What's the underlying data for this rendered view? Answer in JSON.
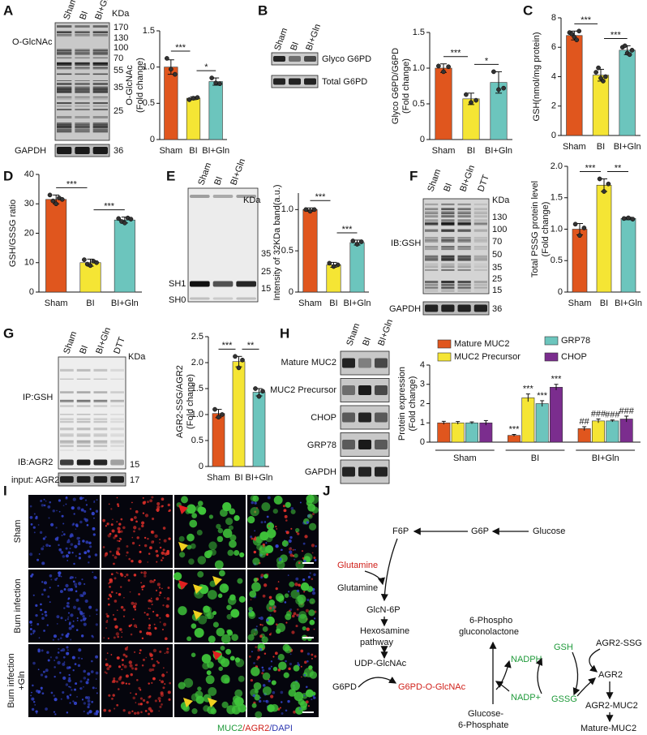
{
  "panels": [
    "A",
    "B",
    "C",
    "D",
    "E",
    "F",
    "G",
    "H",
    "I",
    "J"
  ],
  "blots": {
    "A": {
      "lanes": [
        "Sham",
        "BI",
        "BI+Gln"
      ],
      "unit": "KDa",
      "markers": [
        170,
        130,
        100,
        70,
        55,
        35,
        25
      ],
      "rows": [
        "O-GlcNAc",
        "GAPDH"
      ],
      "loading_marker": 36
    },
    "B": {
      "lanes": [
        "Sham",
        "BI",
        "BI+Gln"
      ],
      "rows": [
        "Glyco G6PD",
        "Total G6PD"
      ]
    },
    "E": {
      "lanes": [
        "Sham",
        "BI",
        "BI+Gln"
      ],
      "unit": "KDa",
      "markers": [
        35,
        25,
        15
      ],
      "rows": [
        "SH1",
        "SH0"
      ]
    },
    "F": {
      "lanes": [
        "Sham",
        "BI",
        "BI+Gln",
        "DTT"
      ],
      "unit": "KDa",
      "markers": [
        130,
        100,
        70,
        50,
        35,
        25,
        15
      ],
      "rows": [
        "IB:GSH",
        "GAPDH"
      ],
      "loading_marker": 36
    },
    "G": {
      "lanes": [
        "Sham",
        "BI",
        "BI+Gln",
        "DTT"
      ],
      "unit": "KDa",
      "rows": [
        "IP:GSH",
        "IB:AGR2",
        "input: AGR2"
      ],
      "markers": [
        15,
        17
      ]
    },
    "H": {
      "lanes": [
        "Sham",
        "BI",
        "BI+Gln"
      ],
      "rows": [
        "Mature MUC2",
        "MUC2 Precursor",
        "CHOP",
        "GRP78",
        "GAPDH"
      ]
    }
  },
  "chart_data": [
    {
      "type": "bar",
      "ylabel": [
        "O-GlcNAc",
        "(Fold change)"
      ],
      "categories": [
        "Sham",
        "BI",
        "BI+Gln"
      ],
      "values": [
        1.0,
        0.57,
        0.8
      ],
      "errors": [
        0.1,
        0.02,
        0.05
      ],
      "points": [
        [
          1.12,
          0.97,
          0.9
        ],
        [
          0.55,
          0.57,
          0.58
        ],
        [
          0.85,
          0.78,
          0.77
        ]
      ],
      "colors": [
        "#e0561e",
        "#f5e534",
        "#6cc5bd"
      ],
      "ylim": [
        0,
        1.5
      ],
      "yticks": [
        0,
        0.5,
        {
          "value": 1,
          "label": "1.0"
        },
        1.5
      ],
      "significance": [
        "***",
        "*"
      ]
    },
    {
      "type": "bar",
      "ylabel": [
        "Glyco G6PD/G6PD",
        "(Fold change)"
      ],
      "categories": [
        "Sham",
        "BI",
        "BI+Gln"
      ],
      "values": [
        1.0,
        0.57,
        0.8
      ],
      "errors": [
        0.06,
        0.08,
        0.15
      ],
      "points": [
        [
          1.03,
          0.95,
          1.02
        ],
        [
          0.63,
          0.52,
          0.55
        ],
        [
          0.95,
          0.7,
          0.72
        ]
      ],
      "colors": [
        "#e0561e",
        "#f5e534",
        "#6cc5bd"
      ],
      "ylim": [
        0,
        1.5
      ],
      "yticks": [
        0,
        0.5,
        {
          "value": 1,
          "label": "1.0"
        },
        1.5
      ],
      "significance": [
        "***",
        "*"
      ]
    },
    {
      "type": "bar",
      "ylabel": [
        "GSH(nmol/mg protein)"
      ],
      "categories": [
        "Sham",
        "BI",
        "BI+Gln"
      ],
      "values": [
        6.8,
        4.1,
        5.8
      ],
      "errors": [
        0.3,
        0.4,
        0.3
      ],
      "points": [
        [
          7.0,
          6.9,
          6.7,
          6.5,
          7.1
        ],
        [
          4.3,
          4.6,
          3.9,
          3.7,
          4.0
        ],
        [
          6.0,
          6.1,
          5.6,
          5.5,
          5.8
        ]
      ],
      "colors": [
        "#e0561e",
        "#f5e534",
        "#6cc5bd"
      ],
      "ylim": [
        0,
        8
      ],
      "yticks": [
        0,
        2,
        4,
        6,
        8
      ],
      "significance": [
        "***",
        "***"
      ]
    },
    {
      "type": "bar",
      "ylabel": [
        "GSH/GSSG ratio"
      ],
      "categories": [
        "Sham",
        "BI",
        "BI+Gln"
      ],
      "values": [
        31.5,
        10,
        24.5
      ],
      "errors": [
        1.5,
        1.2,
        1.0
      ],
      "points": [
        [
          33,
          31,
          30,
          32,
          31.5
        ],
        [
          11,
          9.5,
          9,
          10.5,
          10
        ],
        [
          25,
          24,
          23.5,
          25.2,
          24.8
        ]
      ],
      "colors": [
        "#e0561e",
        "#f5e534",
        "#6cc5bd"
      ],
      "ylim": [
        0,
        40
      ],
      "yticks": [
        0,
        10,
        20,
        30,
        40
      ],
      "significance": [
        "***",
        "***"
      ]
    },
    {
      "type": "bar",
      "ylabel": [
        "Intensity of 32KDa band(a.u.)"
      ],
      "categories": [
        "Sham",
        "BI",
        "BI+Gln"
      ],
      "values": [
        1.0,
        0.33,
        0.6
      ],
      "errors": [
        0.02,
        0.03,
        0.03
      ],
      "points": [
        [
          1.0,
          0.98,
          1.0
        ],
        [
          0.35,
          0.31,
          0.33
        ],
        [
          0.62,
          0.58,
          0.61
        ]
      ],
      "colors": [
        "#e0561e",
        "#f5e534",
        "#6cc5bd"
      ],
      "ylim": [
        0,
        1.2
      ],
      "yticks": [
        0,
        0.5,
        {
          "value": 1,
          "label": "1.0"
        }
      ],
      "significance": [
        "***",
        "***"
      ]
    },
    {
      "type": "bar",
      "ylabel": [
        "Total PSSG protein level",
        "(Fold change)"
      ],
      "categories": [
        "Sham",
        "BI",
        "BI+Gln"
      ],
      "values": [
        1.0,
        1.7,
        1.17
      ],
      "errors": [
        0.09,
        0.1,
        0.02
      ],
      "points": [
        [
          1.08,
          0.9,
          1.02
        ],
        [
          1.8,
          1.6,
          1.72
        ],
        [
          1.17,
          1.18,
          1.16
        ]
      ],
      "colors": [
        "#e0561e",
        "#f5e534",
        "#6cc5bd"
      ],
      "ylim": [
        0,
        2
      ],
      "yticks": [
        0,
        0.5,
        {
          "value": 1,
          "label": "1.0"
        },
        1.5,
        {
          "value": 2,
          "label": "2.0"
        }
      ],
      "significance": [
        "***",
        "**"
      ]
    },
    {
      "type": "bar",
      "ylabel": [
        "AGR2-SSG/AGR2",
        "(Fold change)"
      ],
      "categories": [
        "Sham",
        "BI",
        "BI+Gln"
      ],
      "values": [
        1.02,
        2.02,
        1.43
      ],
      "errors": [
        0.08,
        0.1,
        0.07
      ],
      "points": [
        [
          1.1,
          0.95,
          1.0
        ],
        [
          2.12,
          1.9,
          2.05
        ],
        [
          1.5,
          1.35,
          1.45
        ]
      ],
      "colors": [
        "#e0561e",
        "#f5e534",
        "#6cc5bd"
      ],
      "ylim": [
        0,
        2.5
      ],
      "yticks": [
        0,
        0.5,
        {
          "value": 1,
          "label": "1.0"
        },
        1.5,
        {
          "value": 2,
          "label": "2.0"
        },
        2.5
      ],
      "significance": [
        "***",
        "**"
      ]
    },
    {
      "type": "bar",
      "ylabel": [
        "Protein expression",
        "(Fold change)"
      ],
      "categories": [
        "Sham",
        "BI",
        "BI+Gln"
      ],
      "series": [
        {
          "name": "Mature MUC2",
          "color": "#e0561e",
          "values": [
            1,
            0.35,
            0.7
          ],
          "errors": [
            0.08,
            0.05,
            0.1
          ],
          "marks": [
            null,
            "***",
            "##"
          ]
        },
        {
          "name": "MUC2 Precursor",
          "color": "#f5e534",
          "values": [
            1,
            2.3,
            1.1
          ],
          "errors": [
            0.07,
            0.2,
            0.1
          ],
          "marks": [
            null,
            "***",
            "###"
          ]
        },
        {
          "name": "GRP78",
          "color": "#6cc5bd",
          "values": [
            1,
            2.0,
            1.1
          ],
          "errors": [
            0.05,
            0.15,
            0.05
          ],
          "marks": [
            null,
            "***",
            "###"
          ]
        },
        {
          "name": "CHOP",
          "color": "#7b2d8e",
          "values": [
            1,
            2.85,
            1.2
          ],
          "errors": [
            0.12,
            0.15,
            0.15
          ],
          "marks": [
            null,
            "***",
            "###"
          ]
        }
      ],
      "ylim": [
        0,
        4
      ],
      "yticks": [
        0,
        1,
        2,
        3,
        4
      ]
    }
  ],
  "images": {
    "rows": [
      "Sham",
      "Burn infection",
      "Burn infection",
      "+Gln"
    ],
    "caption": [
      "MUC2",
      "/",
      "AGR2",
      "/",
      "DAPI"
    ]
  },
  "diagram": {
    "nodes": [
      "F6P",
      "G6P",
      "Glucose",
      "Glutamine",
      "Glutamine",
      "GlcN-6P",
      "Hexosamine",
      "pathway",
      "UDP-GlcNAc",
      "G6PD",
      "G6PD-O-GlcNAc",
      "6-Phospho",
      "gluconolactone",
      "NADPH",
      "NADP+",
      "Glucose-",
      "6-Phosphate",
      "GSH",
      "GSSG",
      "AGR2-SSG",
      "AGR2",
      "AGR2-MUC2",
      "Mature-MUC2"
    ]
  }
}
